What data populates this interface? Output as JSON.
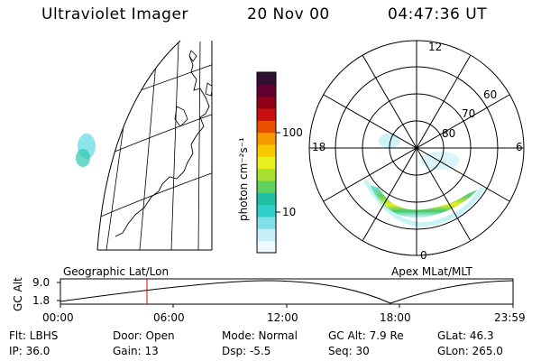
{
  "header": {
    "title": "Ultraviolet Imager",
    "date": "20 Nov 00",
    "time": "04:47:36 UT"
  },
  "colorbar": {
    "unit_label": "photon cm⁻²s⁻¹",
    "ticks": [
      "100",
      "10"
    ],
    "palette": [
      "#f0f8ff",
      "#c8eef8",
      "#7fe0e8",
      "#30d0c8",
      "#20c0a0",
      "#60d060",
      "#a8e030",
      "#e8f020",
      "#f8c800",
      "#f89800",
      "#e85000",
      "#c81010",
      "#900018",
      "#600030",
      "#301030"
    ]
  },
  "geo_map": {
    "label": "Geographic Lat/Lon"
  },
  "polar_map": {
    "label": "Apex MLat/MLT",
    "mlt_labels": {
      "top": "12",
      "left": "18",
      "right": "6",
      "bottom": "0"
    },
    "lat_labels": [
      "60",
      "70",
      "80"
    ]
  },
  "altitude_plot": {
    "ylabel": "GC Alt",
    "ymax": "9.0",
    "ymin": "1.8",
    "x_ticks": [
      "00:00",
      "06:00",
      "12:00",
      "18:00",
      "23:59"
    ],
    "marker_time": "04:47",
    "marker_color": "#e00000"
  },
  "info": {
    "flt": "Flt: LBHS",
    "ip": "IP: 36.0",
    "door": "Door: Open",
    "gain": "Gain: 13",
    "mode": "Mode: Normal",
    "dsp": "Dsp:   -5.5",
    "gcalt": "GC Alt: 7.9 Re",
    "seq": "Seq: 30",
    "glat": "GLat:  46.3",
    "glon": "GLon: 265.0"
  }
}
